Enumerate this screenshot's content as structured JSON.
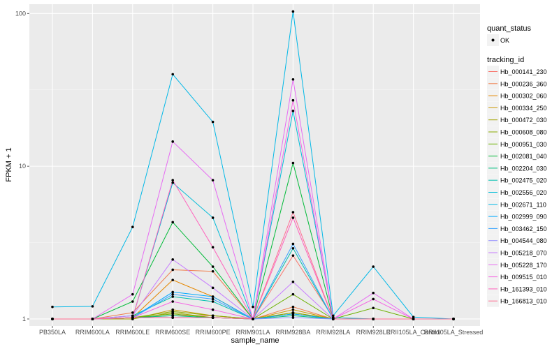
{
  "chart_data": {
    "type": "line",
    "xlabel": "sample_name",
    "ylabel": "FPKM + 1",
    "y_scale": "log10",
    "ylim": [
      0.9,
      115
    ],
    "y_ticks": [
      1,
      10,
      100
    ],
    "y_tick_labels": [
      "1",
      "10",
      "100"
    ],
    "grid": true,
    "background": "#ebebeb",
    "point_color": "#000000",
    "legend_position": "right",
    "categories": [
      "PB350LA",
      "RRIM600LA",
      "RRIM600LE",
      "RRIM600SE",
      "RRIM600PE",
      "RRIM901LA",
      "RRIM928BA",
      "RRIM928LA",
      "RRIM928LE",
      "RRII105LA_Control",
      "RRII105LA_Stressed"
    ],
    "legend_points": {
      "title": "quant_status",
      "label": "OK"
    },
    "legend_lines": {
      "title": "tracking_id"
    },
    "series": [
      {
        "name": "Hb_000141_230",
        "color": "#F8766D",
        "values": [
          1,
          1,
          1.02,
          1.05,
          1.05,
          1,
          2.6,
          1.02,
          1,
          1,
          1
        ]
      },
      {
        "name": "Hb_000236_360",
        "color": "#F07E4D",
        "values": [
          1,
          1,
          1.1,
          2.1,
          2.05,
          1,
          1.2,
          1,
          1,
          1,
          1
        ]
      },
      {
        "name": "Hb_000302_060",
        "color": "#E58700",
        "values": [
          1,
          1,
          1.02,
          1.8,
          1.4,
          1,
          1.1,
          1,
          1,
          1,
          1
        ]
      },
      {
        "name": "Hb_000334_250",
        "color": "#C99800",
        "values": [
          1,
          1,
          1,
          1.15,
          1.05,
          1,
          1.15,
          1,
          1,
          1,
          1
        ]
      },
      {
        "name": "Hb_000472_030",
        "color": "#A3A500",
        "values": [
          1,
          1,
          1,
          1.1,
          1.02,
          1,
          1.08,
          1,
          1,
          1,
          1
        ]
      },
      {
        "name": "Hb_000608_080",
        "color": "#8AAB00",
        "values": [
          1,
          1,
          1.02,
          1.12,
          1.05,
          1,
          1.1,
          1,
          1,
          1,
          1
        ]
      },
      {
        "name": "Hb_000951_030",
        "color": "#6BB100",
        "values": [
          1,
          1,
          1.02,
          1.08,
          1.02,
          1,
          1.45,
          1,
          1.18,
          1,
          1
        ]
      },
      {
        "name": "Hb_002081_040",
        "color": "#00BA38",
        "values": [
          1,
          1,
          1.3,
          4.3,
          2.2,
          1,
          10.5,
          1,
          1,
          1,
          1
        ]
      },
      {
        "name": "Hb_002204_030",
        "color": "#00BF7D",
        "values": [
          1,
          1,
          1.02,
          1.05,
          1.02,
          1,
          1.05,
          1,
          1,
          1,
          1
        ]
      },
      {
        "name": "Hb_002475_020",
        "color": "#00C0AF",
        "values": [
          1,
          1,
          1.05,
          1.4,
          1.3,
          1,
          2.9,
          1,
          1,
          1,
          1
        ]
      },
      {
        "name": "Hb_002556_020",
        "color": "#00BCD8",
        "values": [
          1,
          1,
          1.02,
          7.8,
          4.6,
          1,
          23,
          1.02,
          1,
          1,
          1
        ]
      },
      {
        "name": "Hb_002671_110",
        "color": "#00B8E7",
        "values": [
          1.2,
          1.21,
          4.0,
          40,
          19.5,
          1.2,
          103,
          1.05,
          2.2,
          1.03,
          1
        ]
      },
      {
        "name": "Hb_002999_090",
        "color": "#00A9FF",
        "values": [
          1,
          1,
          1.02,
          1.5,
          1.4,
          1,
          1.08,
          1,
          1,
          1,
          1
        ]
      },
      {
        "name": "Hb_003462_150",
        "color": "#35A2FF",
        "values": [
          1,
          1,
          1.02,
          1.45,
          1.35,
          1,
          3.1,
          1,
          1,
          1,
          1
        ]
      },
      {
        "name": "Hb_004544_080",
        "color": "#9590FF",
        "values": [
          1,
          1,
          1.02,
          1.02,
          1.02,
          1,
          1.02,
          1,
          1,
          1,
          1
        ]
      },
      {
        "name": "Hb_005218_070",
        "color": "#C77CFF",
        "values": [
          1,
          1,
          1.05,
          2.45,
          1.6,
          1,
          1.75,
          1,
          1,
          1,
          1
        ]
      },
      {
        "name": "Hb_005228_170",
        "color": "#E76BF3",
        "values": [
          1,
          1,
          1.45,
          14.5,
          8.1,
          1,
          37,
          1,
          1.48,
          1,
          1
        ]
      },
      {
        "name": "Hb_009515_010",
        "color": "#F564E3",
        "values": [
          1,
          1,
          1.02,
          1.3,
          1.15,
          1,
          27,
          1,
          1.35,
          1,
          1
        ]
      },
      {
        "name": "Hb_161393_010",
        "color": "#FF62BC",
        "values": [
          1,
          1,
          1.02,
          8.1,
          2.95,
          1,
          4.6,
          1,
          1,
          1,
          1
        ]
      },
      {
        "name": "Hb_166813_010",
        "color": "#FF6C91",
        "values": [
          1,
          1,
          1.02,
          1.02,
          1.02,
          1,
          5.0,
          1,
          1,
          1,
          1
        ]
      }
    ]
  }
}
